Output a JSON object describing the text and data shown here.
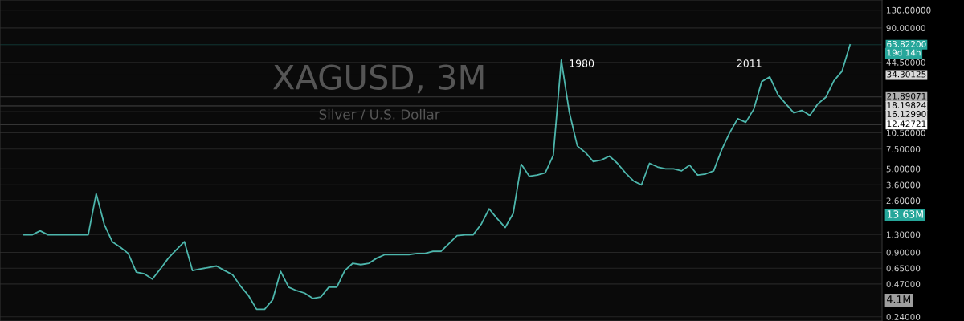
{
  "chart_data": {
    "type": "line",
    "title": "XAGUSD, 3M",
    "subtitle": "Silver / U.S. Dollar",
    "categories": [
      null,
      null,
      null,
      null,
      null,
      null,
      null,
      null,
      null,
      null,
      null,
      null,
      null,
      null,
      null,
      null,
      null,
      null,
      null,
      null,
      null,
      null,
      null,
      null,
      null,
      null,
      null,
      null,
      null,
      null,
      null,
      null,
      null,
      null,
      null,
      null,
      null,
      null,
      null,
      null,
      null,
      null,
      null,
      null,
      null,
      null,
      null,
      null,
      null,
      null,
      null,
      null,
      null,
      null,
      null,
      null,
      null,
      null,
      null,
      null,
      null,
      null,
      null,
      null,
      null,
      null,
      null,
      null,
      null,
      null,
      null,
      null,
      null,
      null,
      null,
      null,
      null,
      null,
      null,
      null,
      null,
      null,
      null,
      null,
      null,
      null,
      null,
      null,
      null,
      null,
      null,
      null,
      null,
      null,
      null,
      null,
      null,
      null,
      null,
      null,
      null,
      null,
      null,
      null
    ],
    "series": [
      {
        "color": "#4db6ac",
        "values": [
          1.29,
          1.29,
          1.4,
          1.29,
          1.29,
          1.29,
          1.29,
          1.29,
          1.29,
          3.0,
          1.6,
          1.12,
          1.0,
          0.88,
          0.6,
          0.58,
          0.52,
          0.64,
          0.8,
          0.95,
          1.12,
          0.62,
          0.64,
          0.66,
          0.68,
          0.62,
          0.57,
          0.45,
          0.37,
          0.28,
          0.28,
          0.34,
          0.61,
          0.44,
          0.41,
          0.39,
          0.35,
          0.36,
          0.44,
          0.44,
          0.62,
          0.72,
          0.7,
          0.72,
          0.8,
          0.86,
          0.86,
          0.86,
          0.86,
          0.88,
          0.88,
          0.92,
          0.92,
          1.08,
          1.27,
          1.29,
          1.29,
          1.6,
          2.2,
          1.8,
          1.5,
          2.0,
          5.5,
          4.3,
          4.4,
          4.6,
          6.6,
          46.6,
          16,
          8,
          7,
          5.8,
          6,
          6.5,
          5.6,
          4.6,
          3.9,
          3.6,
          5.6,
          5.2,
          5,
          5,
          4.8,
          5.4,
          4.4,
          4.5,
          4.8,
          7.4,
          10.5,
          14,
          13,
          17,
          30,
          33,
          23,
          19,
          15.8,
          16.6,
          15,
          19,
          21.8,
          30.5,
          37,
          63.8
        ]
      }
    ],
    "log": true,
    "grid": true,
    "ylim": [
      0.22,
      160
    ],
    "yticks": [
      {
        "value": 0.24,
        "label": "0.24000"
      },
      {
        "value": 0.47,
        "label": "0.47000"
      },
      {
        "value": 0.65,
        "label": "0.65000"
      },
      {
        "value": 0.9,
        "label": "0.90000"
      },
      {
        "value": 1.3,
        "label": "1.30000"
      },
      {
        "value": 2.6,
        "label": "2.60000"
      },
      {
        "value": 3.6,
        "label": "3.60000"
      },
      {
        "value": 5,
        "label": "5.00000"
      },
      {
        "value": 7.5,
        "label": "7.50000"
      },
      {
        "value": 10.5,
        "label": "10.50000"
      },
      {
        "value": 44.5,
        "label": "44.50000"
      },
      {
        "value": 90,
        "label": "90.00000"
      },
      {
        "value": 130,
        "label": "130.00000"
      }
    ],
    "ref_lines": [
      {
        "axis": "y",
        "value": 63.822,
        "label": "63.82200",
        "color": "#26a69a"
      },
      {
        "axis": "y",
        "value": 34.30125,
        "label": "34.30125",
        "color": "#d9d9d9"
      },
      {
        "axis": "y",
        "value": 21.89071,
        "label": "21.89071",
        "color": "#b0b0b0"
      },
      {
        "axis": "y",
        "value": 18.19824,
        "label": "18.19824",
        "color": "#d9d9d9"
      },
      {
        "axis": "y",
        "value": 16.1299,
        "label": "16.12990",
        "color": "#d9d9d9"
      },
      {
        "axis": "y",
        "value": 12.42721,
        "label": "12.42721",
        "color": "#ffffff"
      }
    ],
    "annotations": [
      "1980",
      "2011",
      "19d 14h",
      "13.63M",
      "4.1M"
    ]
  }
}
